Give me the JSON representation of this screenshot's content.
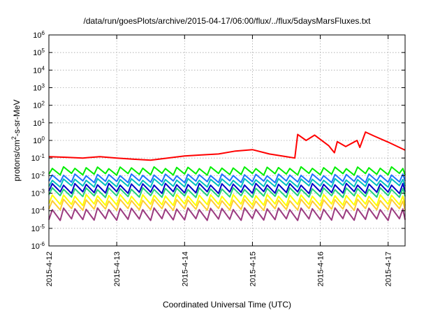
{
  "chart_data": {
    "type": "line",
    "title": "/data/run/goesPlots/archive/2015-04-17/06:00/flux/../flux/5daysMarsFluxes.txt",
    "xlabel": "Coordinated Universal Time (UTC)",
    "ylabel": "protons/cm2-s-sr-MeV",
    "ylabel_parts": {
      "pre": "protons/cm",
      "sup": "2",
      "post": "-s-sr-MeV"
    },
    "y_scale": "log",
    "ylim": [
      1e-06,
      1000000.0
    ],
    "y_ticks": [
      {
        "value": 1e-06,
        "base": "10",
        "exp": "-6"
      },
      {
        "value": 1e-05,
        "base": "10",
        "exp": "-5"
      },
      {
        "value": 0.0001,
        "base": "10",
        "exp": "-4"
      },
      {
        "value": 0.001,
        "base": "10",
        "exp": "-3"
      },
      {
        "value": 0.01,
        "base": "10",
        "exp": "-2"
      },
      {
        "value": 0.1,
        "base": "10",
        "exp": "-1"
      },
      {
        "value": 1,
        "base": "10",
        "exp": "0"
      },
      {
        "value": 10,
        "base": "10",
        "exp": "1"
      },
      {
        "value": 100,
        "base": "10",
        "exp": "2"
      },
      {
        "value": 1000,
        "base": "10",
        "exp": "3"
      },
      {
        "value": 10000,
        "base": "10",
        "exp": "4"
      },
      {
        "value": 100000,
        "base": "10",
        "exp": "5"
      },
      {
        "value": 1000000,
        "base": "10",
        "exp": "6"
      }
    ],
    "xlim": [
      "2015-04-12T00:00",
      "2015-04-17T06:00"
    ],
    "x_ticks": [
      "2015-4-12",
      "2015-4-13",
      "2015-4-14",
      "2015-4-15",
      "2015-4-16",
      "2015-4-17"
    ],
    "grid": true,
    "legend": "none",
    "series": [
      {
        "color": "#ff0000",
        "points": [
          [
            "2015-04-12T00:00",
            0.12
          ],
          [
            "2015-04-12T06:00",
            0.11
          ],
          [
            "2015-04-12T12:00",
            0.1
          ],
          [
            "2015-04-12T18:00",
            0.12
          ],
          [
            "2015-04-13T00:00",
            0.1
          ],
          [
            "2015-04-13T06:00",
            0.085
          ],
          [
            "2015-04-13T12:00",
            0.075
          ],
          [
            "2015-04-13T18:00",
            0.1
          ],
          [
            "2015-04-14T00:00",
            0.13
          ],
          [
            "2015-04-14T06:00",
            0.15
          ],
          [
            "2015-04-14T12:00",
            0.17
          ],
          [
            "2015-04-14T18:00",
            0.25
          ],
          [
            "2015-04-15T00:00",
            0.3
          ],
          [
            "2015-04-15T06:00",
            0.17
          ],
          [
            "2015-04-15T12:00",
            0.12
          ],
          [
            "2015-04-15T15:00",
            0.1
          ],
          [
            "2015-04-15T16:00",
            2.2
          ],
          [
            "2015-04-15T19:00",
            1.0
          ],
          [
            "2015-04-15T22:00",
            2.0
          ],
          [
            "2015-04-16T03:00",
            0.5
          ],
          [
            "2015-04-16T05:00",
            0.2
          ],
          [
            "2015-04-16T06:00",
            0.85
          ],
          [
            "2015-04-16T09:00",
            0.45
          ],
          [
            "2015-04-16T13:00",
            1.0
          ],
          [
            "2015-04-16T14:00",
            0.4
          ],
          [
            "2015-04-16T16:00",
            3.0
          ],
          [
            "2015-04-16T19:00",
            1.8
          ],
          [
            "2015-04-17T00:00",
            0.8
          ],
          [
            "2015-04-17T06:00",
            0.28
          ]
        ]
      },
      {
        "color": "#00ee00",
        "sawtooth": {
          "period_hours": 4,
          "peak": 0.028,
          "trough": 0.012
        }
      },
      {
        "color": "#00bfbf",
        "sawtooth": {
          "period_hours": 4,
          "peak": 0.006,
          "trough": 0.0025
        }
      },
      {
        "color": "#1e73ff",
        "sawtooth": {
          "period_hours": 4,
          "peak": 0.011,
          "trough": 0.0045
        }
      },
      {
        "color": "#0000c8",
        "sawtooth": {
          "period_hours": 4,
          "peak": 0.0032,
          "trough": 0.0011
        }
      },
      {
        "color": "#22d47a",
        "sawtooth": {
          "period_hours": 4,
          "peak": 0.0018,
          "trough": 0.00065
        }
      },
      {
        "color": "#ffff00",
        "sawtooth": {
          "period_hours": 4,
          "peak": 0.00075,
          "trough": 0.00022
        }
      },
      {
        "color": "#ffcc33",
        "sawtooth": {
          "period_hours": 4,
          "peak": 0.0004,
          "trough": 0.00012
        }
      },
      {
        "color": "#9b3b80",
        "sawtooth": {
          "period_hours": 4,
          "peak": 0.00013,
          "trough": 3.2e-05
        }
      }
    ]
  }
}
